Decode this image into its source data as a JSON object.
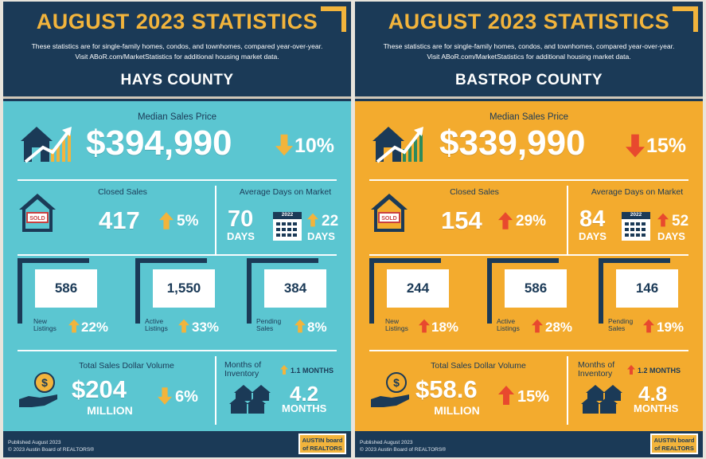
{
  "colors": {
    "navy": "#1b3a57",
    "gold": "#f2b43c",
    "teal": "#5bc6d1",
    "orange": "#f3ab2e",
    "up_arrow_hays": "#f2b43c",
    "down_arrow_hays": "#f2b43c",
    "arrow_bastrop": "#e8492e"
  },
  "panels": [
    {
      "title": "AUGUST 2023 STATISTICS",
      "subtitle_line1": "These statistics are for single-family homes, condos, and townhomes, compared year-over-year.",
      "subtitle_line2": "Visit ABoR.com/MarketStatistics for additional housing market data.",
      "county": "HAYS COUNTY",
      "median": {
        "label": "Median Sales Price",
        "value": "$394,990",
        "change": "10%",
        "direction": "down"
      },
      "closed": {
        "label": "Closed Sales",
        "value": "417",
        "change": "5%",
        "direction": "up"
      },
      "dom": {
        "label": "Average Days on Market",
        "value": "70",
        "unit": "DAYS",
        "year": "2022",
        "change": "22",
        "change_unit": "DAYS",
        "direction": "up"
      },
      "listings": [
        {
          "value": "586",
          "label1": "New",
          "label2": "Listings",
          "change": "22%",
          "direction": "up"
        },
        {
          "value": "1,550",
          "label1": "Active",
          "label2": "Listings",
          "change": "33%",
          "direction": "up"
        },
        {
          "value": "384",
          "label1": "Pending",
          "label2": "Sales",
          "change": "8%",
          "direction": "up"
        }
      ],
      "volume": {
        "label": "Total Sales Dollar Volume",
        "value": "$204",
        "unit": "MILLION",
        "change": "6%",
        "direction": "down"
      },
      "inventory": {
        "label1": "Months of",
        "label2": "Inventory",
        "change": "1.1 MONTHS",
        "value": "4.2",
        "unit": "MONTHS",
        "direction": "up"
      },
      "footer1": "Published August 2023",
      "footer2": "© 2023 Austin Board of REALTORS®",
      "logo1": "AUSTIN board",
      "logo2": "of REALTORS"
    },
    {
      "title": "AUGUST 2023 STATISTICS",
      "subtitle_line1": "These statistics are for single-family homes, condos, and townhomes, compared year-over-year.",
      "subtitle_line2": "Visit ABoR.com/MarketStatistics for additional housing market data.",
      "county": "BASTROP COUNTY",
      "median": {
        "label": "Median Sales Price",
        "value": "$339,990",
        "change": "15%",
        "direction": "down"
      },
      "closed": {
        "label": "Closed Sales",
        "value": "154",
        "change": "29%",
        "direction": "up"
      },
      "dom": {
        "label": "Average Days on Market",
        "value": "84",
        "unit": "DAYS",
        "year": "2022",
        "change": "52",
        "change_unit": "DAYS",
        "direction": "up"
      },
      "listings": [
        {
          "value": "244",
          "label1": "New",
          "label2": "Listings",
          "change": "18%",
          "direction": "up"
        },
        {
          "value": "586",
          "label1": "Active",
          "label2": "Listings",
          "change": "28%",
          "direction": "up"
        },
        {
          "value": "146",
          "label1": "Pending",
          "label2": "Sales",
          "change": "19%",
          "direction": "up"
        }
      ],
      "volume": {
        "label": "Total Sales Dollar Volume",
        "value": "$58.6",
        "unit": "MILLION",
        "change": "15%",
        "direction": "up"
      },
      "inventory": {
        "label1": "Months of",
        "label2": "Inventory",
        "change": "1.2 MONTHS",
        "value": "4.8",
        "unit": "MONTHS",
        "direction": "up"
      },
      "footer1": "Published August 2023",
      "footer2": "© 2023 Austin Board of REALTORS®",
      "logo1": "AUSTIN board",
      "logo2": "of REALTORS"
    }
  ]
}
